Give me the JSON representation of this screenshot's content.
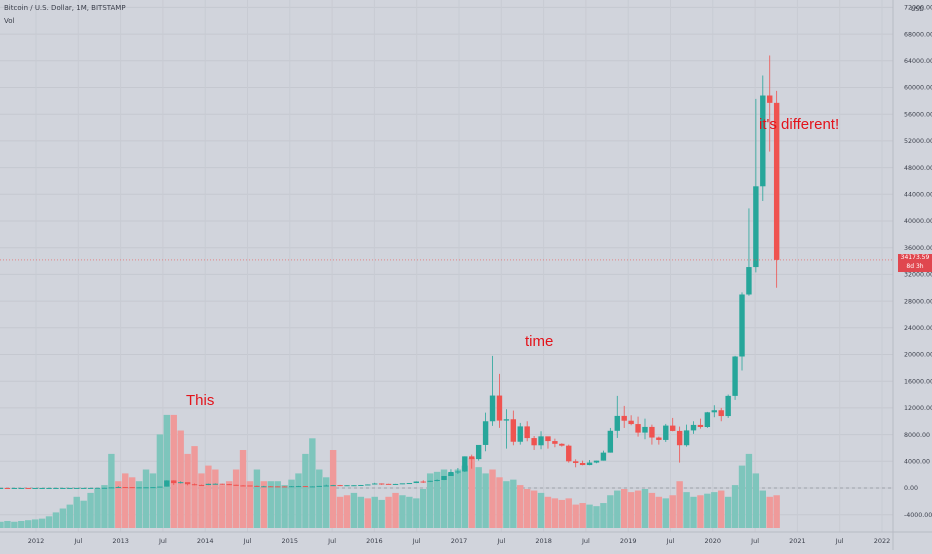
{
  "header": {
    "title": "Bitcoin / U.S. Dollar, 1M, BITSTAMP",
    "indicator": "Vol"
  },
  "axis": {
    "currency": "USD",
    "y_ticks": [
      "72000.00",
      "68000.00",
      "64000.00",
      "60000.00",
      "56000.00",
      "52000.00",
      "48000.00",
      "44000.00",
      "40000.00",
      "36000.00",
      "32000.00",
      "28000.00",
      "24000.00",
      "20000.00",
      "16000.00",
      "12000.00",
      "8000.00",
      "4000.00",
      "0.00",
      "-4000.00"
    ],
    "x_ticks": [
      "2012",
      "Jul",
      "2013",
      "Jul",
      "2014",
      "Jul",
      "2015",
      "Jul",
      "2016",
      "Jul",
      "2017",
      "Jul",
      "2018",
      "Jul",
      "2019",
      "Jul",
      "2020",
      "Jul",
      "2021",
      "Jul",
      "2022"
    ]
  },
  "last_price": {
    "price": "34173.59",
    "countdown": "8d 3h"
  },
  "annotations": {
    "first": "This",
    "second": "time",
    "third": "it's different!"
  },
  "colors": {
    "up": "#26a69a",
    "down": "#ef5350",
    "vol_up": "#7ec5bc",
    "vol_down": "#ef9a9a",
    "background": "#d1d4dc",
    "annotation": "#e3131b"
  },
  "chart_data": {
    "type": "candlestick",
    "title": "Bitcoin / U.S. Dollar, 1M, BITSTAMP",
    "interval": "1M",
    "x_start": "2011-09",
    "y_range": [
      -4000,
      72000
    ],
    "candles": [
      [
        5,
        5,
        4,
        5
      ],
      [
        5,
        5,
        3,
        4
      ],
      [
        4,
        5,
        4,
        5
      ],
      [
        5,
        7,
        5,
        6
      ],
      [
        6,
        7,
        4,
        5
      ],
      [
        5,
        5,
        4,
        5
      ],
      [
        5,
        6,
        4,
        5
      ],
      [
        5,
        6,
        5,
        6
      ],
      [
        6,
        7,
        5,
        7
      ],
      [
        7,
        9,
        6,
        8
      ],
      [
        8,
        11,
        7,
        10
      ],
      [
        10,
        13,
        9,
        12
      ],
      [
        12,
        13,
        10,
        12
      ],
      [
        12,
        13,
        11,
        13
      ],
      [
        13,
        21,
        13,
        21
      ],
      [
        21,
        33,
        19,
        33
      ],
      [
        33,
        95,
        33,
        93
      ],
      [
        93,
        266,
        50,
        139
      ],
      [
        139,
        139,
        75,
        128
      ],
      [
        128,
        129,
        95,
        97
      ],
      [
        97,
        110,
        65,
        97
      ],
      [
        97,
        110,
        85,
        105
      ],
      [
        105,
        140,
        95,
        128
      ],
      [
        128,
        220,
        110,
        208
      ],
      [
        208,
        1163,
        200,
        1132
      ],
      [
        1132,
        1163,
        460,
        732
      ],
      [
        732,
        1000,
        680,
        873
      ],
      [
        873,
        780,
        400,
        566
      ],
      [
        566,
        680,
        420,
        458
      ],
      [
        458,
        500,
        340,
        445
      ],
      [
        445,
        660,
        430,
        630
      ],
      [
        630,
        690,
        520,
        640
      ],
      [
        640,
        650,
        470,
        580
      ],
      [
        580,
        620,
        445,
        480
      ],
      [
        480,
        500,
        350,
        385
      ],
      [
        385,
        440,
        320,
        378
      ],
      [
        378,
        380,
        260,
        320
      ],
      [
        320,
        360,
        160,
        218
      ],
      [
        218,
        320,
        200,
        254
      ],
      [
        254,
        300,
        235,
        245
      ],
      [
        245,
        260,
        210,
        235
      ],
      [
        235,
        265,
        220,
        230
      ],
      [
        230,
        300,
        210,
        264
      ],
      [
        264,
        320,
        200,
        285
      ],
      [
        285,
        290,
        210,
        232
      ],
      [
        232,
        250,
        220,
        237
      ],
      [
        237,
        310,
        235,
        314
      ],
      [
        314,
        500,
        300,
        377
      ],
      [
        377,
        470,
        340,
        430
      ],
      [
        430,
        460,
        350,
        368
      ],
      [
        368,
        440,
        360,
        415
      ],
      [
        415,
        430,
        370,
        415
      ],
      [
        415,
        460,
        410,
        450
      ],
      [
        450,
        540,
        440,
        530
      ],
      [
        530,
        780,
        520,
        675
      ],
      [
        675,
        700,
        470,
        621
      ],
      [
        621,
        630,
        520,
        570
      ],
      [
        570,
        610,
        560,
        608
      ],
      [
        608,
        630,
        580,
        700
      ],
      [
        700,
        750,
        690,
        745
      ],
      [
        745,
        1000,
        735,
        970
      ],
      [
        970,
        1160,
        750,
        965
      ],
      [
        965,
        1070,
        890,
        1080
      ],
      [
        1080,
        1290,
        1000,
        1200
      ],
      [
        1200,
        1800,
        1180,
        1800
      ],
      [
        1800,
        2800,
        1800,
        2400
      ],
      [
        2400,
        3000,
        2100,
        2475
      ],
      [
        2475,
        4740,
        2400,
        4740
      ],
      [
        4740,
        5000,
        2900,
        4330
      ],
      [
        4330,
        6400,
        4100,
        6450
      ],
      [
        6450,
        11300,
        5500,
        10000
      ],
      [
        10000,
        19800,
        9300,
        13850
      ],
      [
        13850,
        17100,
        9000,
        10100
      ],
      [
        10100,
        11800,
        5900,
        10300
      ],
      [
        10300,
        11600,
        6400,
        6930
      ],
      [
        6930,
        9750,
        6500,
        9230
      ],
      [
        9230,
        10000,
        7000,
        7480
      ],
      [
        7480,
        7790,
        5700,
        6400
      ],
      [
        6400,
        8500,
        5800,
        7740
      ],
      [
        7740,
        7600,
        5900,
        7030
      ],
      [
        7030,
        7400,
        6100,
        6620
      ],
      [
        6620,
        6700,
        6200,
        6340
      ],
      [
        6340,
        6500,
        3800,
        4000
      ],
      [
        4000,
        4300,
        3100,
        3750
      ],
      [
        3750,
        4100,
        3400,
        3440
      ],
      [
        3440,
        4200,
        3400,
        3810
      ],
      [
        3810,
        4100,
        3700,
        4100
      ],
      [
        4100,
        5600,
        4100,
        5300
      ],
      [
        5300,
        9000,
        5300,
        8570
      ],
      [
        8570,
        13800,
        7500,
        10800
      ],
      [
        10800,
        12300,
        9000,
        10080
      ],
      [
        10080,
        10900,
        9400,
        9580
      ],
      [
        9580,
        10700,
        7700,
        8300
      ],
      [
        8300,
        10400,
        7300,
        9150
      ],
      [
        9150,
        9500,
        6500,
        7560
      ],
      [
        7560,
        7700,
        6500,
        7200
      ],
      [
        7200,
        9600,
        6900,
        9350
      ],
      [
        9350,
        10500,
        8500,
        8550
      ],
      [
        8550,
        9200,
        3800,
        6410
      ],
      [
        6410,
        9500,
        6200,
        8630
      ],
      [
        8630,
        10000,
        8100,
        9450
      ],
      [
        9450,
        10400,
        8900,
        9140
      ],
      [
        9140,
        11400,
        9000,
        11340
      ],
      [
        11340,
        12400,
        10600,
        11650
      ],
      [
        11650,
        12000,
        10000,
        10780
      ],
      [
        10780,
        14000,
        10500,
        13800
      ],
      [
        13800,
        19800,
        13200,
        19700
      ],
      [
        19700,
        29300,
        17600,
        28990
      ],
      [
        28990,
        41900,
        28800,
        33100
      ],
      [
        33100,
        58300,
        32300,
        45200
      ],
      [
        45200,
        61800,
        43000,
        58800
      ],
      [
        58800,
        64800,
        50400,
        57700
      ],
      [
        57700,
        59500,
        30000,
        34173.59
      ]
    ],
    "volume_proxy": [
      [
        8,
        1
      ],
      [
        9,
        1
      ],
      [
        8,
        1
      ],
      [
        9,
        1
      ],
      [
        10,
        1
      ],
      [
        11,
        1
      ],
      [
        12,
        1
      ],
      [
        15,
        1
      ],
      [
        20,
        1
      ],
      [
        25,
        1
      ],
      [
        30,
        1
      ],
      [
        40,
        1
      ],
      [
        35,
        1
      ],
      [
        45,
        1
      ],
      [
        50,
        1
      ],
      [
        55,
        1
      ],
      [
        95,
        1
      ],
      [
        60,
        0
      ],
      [
        70,
        0
      ],
      [
        65,
        0
      ],
      [
        60,
        1
      ],
      [
        75,
        1
      ],
      [
        70,
        1
      ],
      [
        120,
        1
      ],
      [
        145,
        1
      ],
      [
        145,
        0
      ],
      [
        125,
        0
      ],
      [
        95,
        0
      ],
      [
        105,
        0
      ],
      [
        70,
        0
      ],
      [
        80,
        0
      ],
      [
        75,
        0
      ],
      [
        55,
        0
      ],
      [
        60,
        0
      ],
      [
        75,
        0
      ],
      [
        100,
        0
      ],
      [
        60,
        0
      ],
      [
        75,
        1
      ],
      [
        60,
        0
      ],
      [
        60,
        1
      ],
      [
        60,
        1
      ],
      [
        55,
        1
      ],
      [
        62,
        1
      ],
      [
        70,
        1
      ],
      [
        95,
        1
      ],
      [
        115,
        1
      ],
      [
        75,
        1
      ],
      [
        65,
        1
      ],
      [
        100,
        0
      ],
      [
        40,
        0
      ],
      [
        42,
        0
      ],
      [
        45,
        1
      ],
      [
        40,
        1
      ],
      [
        38,
        0
      ],
      [
        40,
        1
      ],
      [
        36,
        1
      ],
      [
        40,
        0
      ],
      [
        45,
        0
      ],
      [
        42,
        1
      ],
      [
        40,
        1
      ],
      [
        38,
        1
      ],
      [
        50,
        1
      ],
      [
        70,
        1
      ],
      [
        72,
        1
      ],
      [
        75,
        1
      ],
      [
        70,
        1
      ],
      [
        75,
        1
      ],
      [
        80,
        1
      ],
      [
        90,
        0
      ],
      [
        78,
        1
      ],
      [
        70,
        1
      ],
      [
        75,
        0
      ],
      [
        65,
        0
      ],
      [
        60,
        1
      ],
      [
        62,
        1
      ],
      [
        55,
        0
      ],
      [
        50,
        0
      ],
      [
        48,
        0
      ],
      [
        45,
        1
      ],
      [
        40,
        0
      ],
      [
        38,
        0
      ],
      [
        36,
        0
      ],
      [
        38,
        0
      ],
      [
        30,
        0
      ],
      [
        32,
        0
      ],
      [
        30,
        1
      ],
      [
        28,
        1
      ],
      [
        32,
        1
      ],
      [
        42,
        1
      ],
      [
        48,
        1
      ],
      [
        50,
        0
      ],
      [
        46,
        0
      ],
      [
        48,
        0
      ],
      [
        50,
        1
      ],
      [
        45,
        0
      ],
      [
        40,
        0
      ],
      [
        38,
        1
      ],
      [
        42,
        0
      ],
      [
        60,
        0
      ],
      [
        46,
        1
      ],
      [
        40,
        1
      ],
      [
        42,
        0
      ],
      [
        44,
        1
      ],
      [
        46,
        1
      ],
      [
        48,
        0
      ],
      [
        40,
        1
      ],
      [
        55,
        1
      ],
      [
        80,
        1
      ],
      [
        95,
        1
      ],
      [
        70,
        1
      ],
      [
        48,
        1
      ],
      [
        40,
        0
      ],
      [
        42,
        0
      ]
    ]
  }
}
